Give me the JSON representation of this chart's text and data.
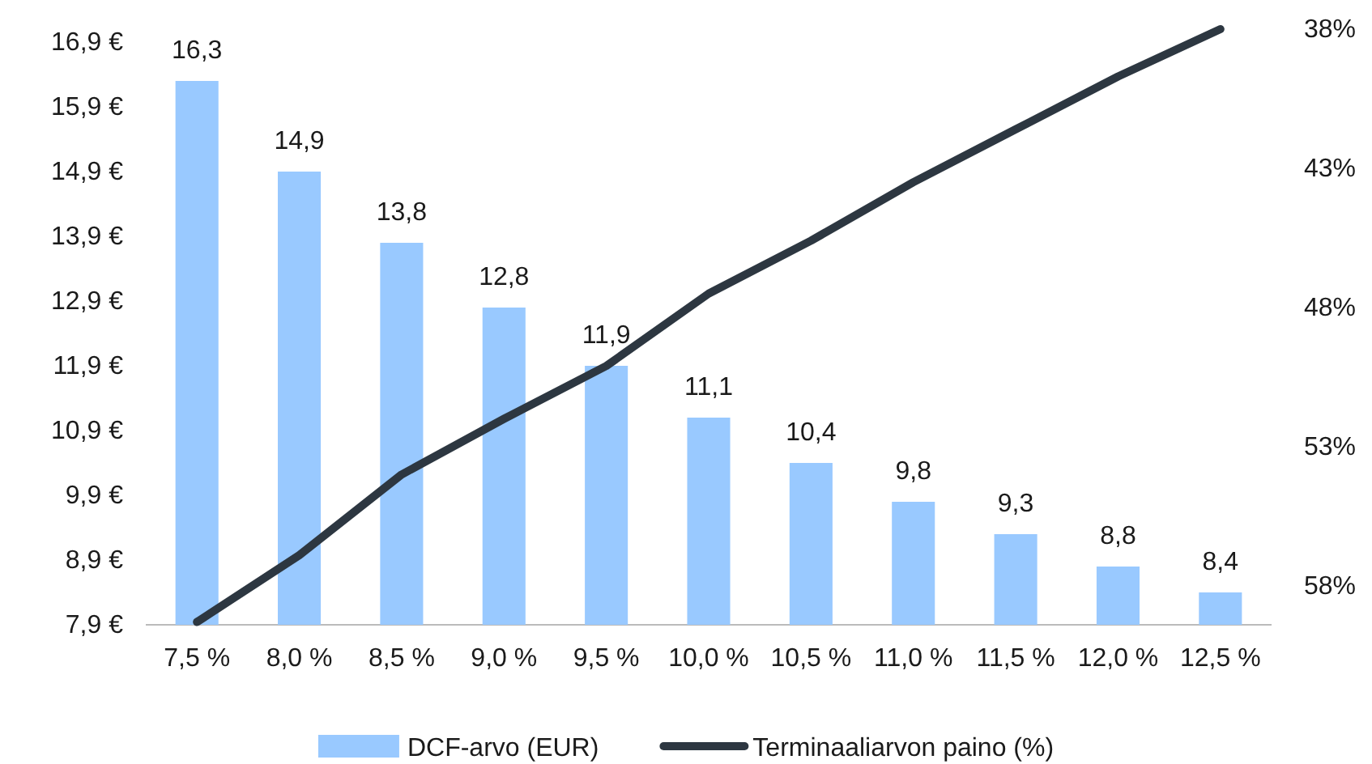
{
  "chart_data": {
    "type": "bar",
    "categories": [
      "7,5 %",
      "8,0 %",
      "8,5 %",
      "9,0 %",
      "9,5 %",
      "10,0 %",
      "10,5 %",
      "11,0 %",
      "11,5 %",
      "12,0 %",
      "12,5 %"
    ],
    "series": [
      {
        "name": "DCF-arvo (EUR)",
        "color": "#99c9ff",
        "values": [
          16.3,
          14.9,
          13.8,
          12.8,
          11.9,
          11.1,
          10.4,
          9.8,
          9.3,
          8.8,
          8.4
        ],
        "value_labels": [
          "16,3",
          "14,9",
          "13,8",
          "12,8",
          "11,9",
          "11,1",
          "10,4",
          "9,8",
          "9,3",
          "8,8",
          "8,4"
        ]
      },
      {
        "name": "Terminaaliarvon paino (%)",
        "type": "line",
        "axis": "y2",
        "color": "#2d3741",
        "values": [
          59.3,
          56.9,
          54.0,
          52.0,
          50.1,
          47.5,
          45.6,
          43.5,
          41.6,
          39.7,
          38.0
        ]
      }
    ],
    "ylim": [
      7.9,
      16.9
    ],
    "yticks": [
      {
        "value": 7.9,
        "label": "7,9 €"
      },
      {
        "value": 8.9,
        "label": "8,9 €"
      },
      {
        "value": 9.9,
        "label": "9,9 €"
      },
      {
        "value": 10.9,
        "label": "10,9 €"
      },
      {
        "value": 11.9,
        "label": "11,9 €"
      },
      {
        "value": 12.9,
        "label": "12,9 €"
      },
      {
        "value": 13.9,
        "label": "13,9 €"
      },
      {
        "value": 14.9,
        "label": "14,9 €"
      },
      {
        "value": 15.9,
        "label": "15,9 €"
      },
      {
        "value": 16.9,
        "label": "16,9 €"
      }
    ],
    "y2lim": [
      59.4,
      38
    ],
    "y2ticks": [
      {
        "value": 38,
        "label": "38%"
      },
      {
        "value": 43,
        "label": "43%"
      },
      {
        "value": 48,
        "label": "48%"
      },
      {
        "value": 53,
        "label": "53%"
      },
      {
        "value": 58,
        "label": "58%"
      }
    ],
    "grid": false,
    "legend": "bottom",
    "line_style": "solid",
    "marker": "none"
  }
}
